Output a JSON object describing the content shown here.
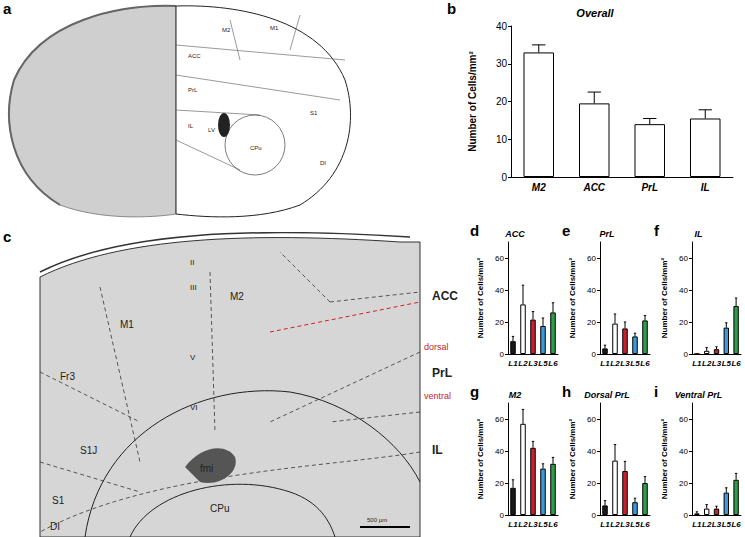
{
  "figure": {
    "panel_a": {
      "label": "a",
      "atlas_labels": [
        "M2",
        "M1",
        "ACC",
        "PrL",
        "IL",
        "LV",
        "CPu",
        "S1",
        "DI"
      ]
    },
    "panel_c": {
      "label": "c",
      "labels": [
        "II",
        "III",
        "V",
        "VI",
        "M1",
        "M2",
        "Fr3",
        "S1J",
        "S1",
        "DI",
        "fmi",
        "CPu",
        "ACC",
        "dorsal",
        "PrL",
        "ventral",
        "IL"
      ],
      "scale_bar": "500 µm"
    }
  },
  "chart_data": [
    {
      "type": "bar",
      "panel": "b",
      "title": "Overall",
      "y_label": "Number of Cells/mm²",
      "categories": [
        "M2",
        "ACC",
        "PrL",
        "IL"
      ],
      "values": [
        33,
        19.5,
        14,
        15.5
      ],
      "errors": [
        2,
        3,
        1.5,
        2.3
      ],
      "colors": [
        "#ffffff",
        "#ffffff",
        "#ffffff",
        "#ffffff"
      ],
      "ylim": [
        0,
        40
      ],
      "yticks": [
        0,
        10,
        20,
        30,
        40
      ],
      "grid": false
    },
    {
      "type": "bar",
      "panel": "d",
      "title": "ACC",
      "y_label": "Number of Cells/mm²",
      "categories": [
        "L1",
        "L2",
        "L3",
        "L5",
        "L6"
      ],
      "values": [
        8,
        31,
        21.5,
        17.5,
        26
      ],
      "errors": [
        3,
        12,
        5,
        5,
        6
      ],
      "colors": [
        "#1a1a1a",
        "#ffffff",
        "#c8202c",
        "#3b9ad9",
        "#2e9e48"
      ],
      "ylim": [
        0,
        70
      ],
      "yticks": [
        0,
        20,
        40,
        60
      ],
      "grid": false
    },
    {
      "type": "bar",
      "panel": "e",
      "title": "PrL",
      "y_label": "Number of Cells/mm²",
      "categories": [
        "L1",
        "L2",
        "L3",
        "L5",
        "L6"
      ],
      "values": [
        3.5,
        19,
        16,
        11,
        21
      ],
      "errors": [
        2,
        6,
        4,
        2,
        3
      ],
      "colors": [
        "#1a1a1a",
        "#ffffff",
        "#c8202c",
        "#3b9ad9",
        "#2e9e48"
      ],
      "ylim": [
        0,
        70
      ],
      "yticks": [
        0,
        20,
        40,
        60
      ],
      "grid": false
    },
    {
      "type": "bar",
      "panel": "f",
      "title": "IL",
      "y_label": "Number of Cells/mm²",
      "categories": [
        "L1",
        "L2",
        "L3",
        "L5",
        "L6"
      ],
      "values": [
        0,
        2,
        3,
        16.5,
        30
      ],
      "errors": [
        0,
        2,
        1.5,
        3,
        5
      ],
      "colors": [
        "#1a1a1a",
        "#ffffff",
        "#c8202c",
        "#3b9ad9",
        "#2e9e48"
      ],
      "ylim": [
        0,
        70
      ],
      "yticks": [
        0,
        20,
        40,
        60
      ],
      "grid": false
    },
    {
      "type": "bar",
      "panel": "g",
      "title": "M2",
      "y_label": "Number of Cells/mm²",
      "categories": [
        "L1",
        "L2",
        "L3",
        "L5",
        "L6"
      ],
      "values": [
        17,
        57,
        42,
        29,
        32
      ],
      "errors": [
        5,
        9,
        4,
        3,
        4
      ],
      "colors": [
        "#1a1a1a",
        "#ffffff",
        "#c8202c",
        "#3b9ad9",
        "#2e9e48"
      ],
      "ylim": [
        0,
        70
      ],
      "yticks": [
        0,
        20,
        40,
        60
      ],
      "grid": false
    },
    {
      "type": "bar",
      "panel": "h",
      "title": "Dorsal PrL",
      "y_label": "Number of Cells/mm²",
      "categories": [
        "L1",
        "L2",
        "L3",
        "L5",
        "L6"
      ],
      "values": [
        6,
        34,
        27.5,
        8,
        20
      ],
      "errors": [
        3,
        10,
        6,
        2.5,
        4
      ],
      "colors": [
        "#1a1a1a",
        "#ffffff",
        "#c8202c",
        "#3b9ad9",
        "#2e9e48"
      ],
      "ylim": [
        0,
        70
      ],
      "yticks": [
        0,
        20,
        40,
        60
      ],
      "grid": false
    },
    {
      "type": "bar",
      "panel": "i",
      "title": "Ventral PrL",
      "y_label": "Number of Cells/mm²",
      "categories": [
        "L1",
        "L2",
        "L3",
        "L5",
        "L6"
      ],
      "values": [
        1,
        4,
        4,
        14,
        22
      ],
      "errors": [
        1,
        2.5,
        1.5,
        3,
        4
      ],
      "colors": [
        "#1a1a1a",
        "#ffffff",
        "#c8202c",
        "#3b9ad9",
        "#2e9e48"
      ],
      "ylim": [
        0,
        70
      ],
      "yticks": [
        0,
        20,
        40,
        60
      ],
      "grid": false
    }
  ]
}
